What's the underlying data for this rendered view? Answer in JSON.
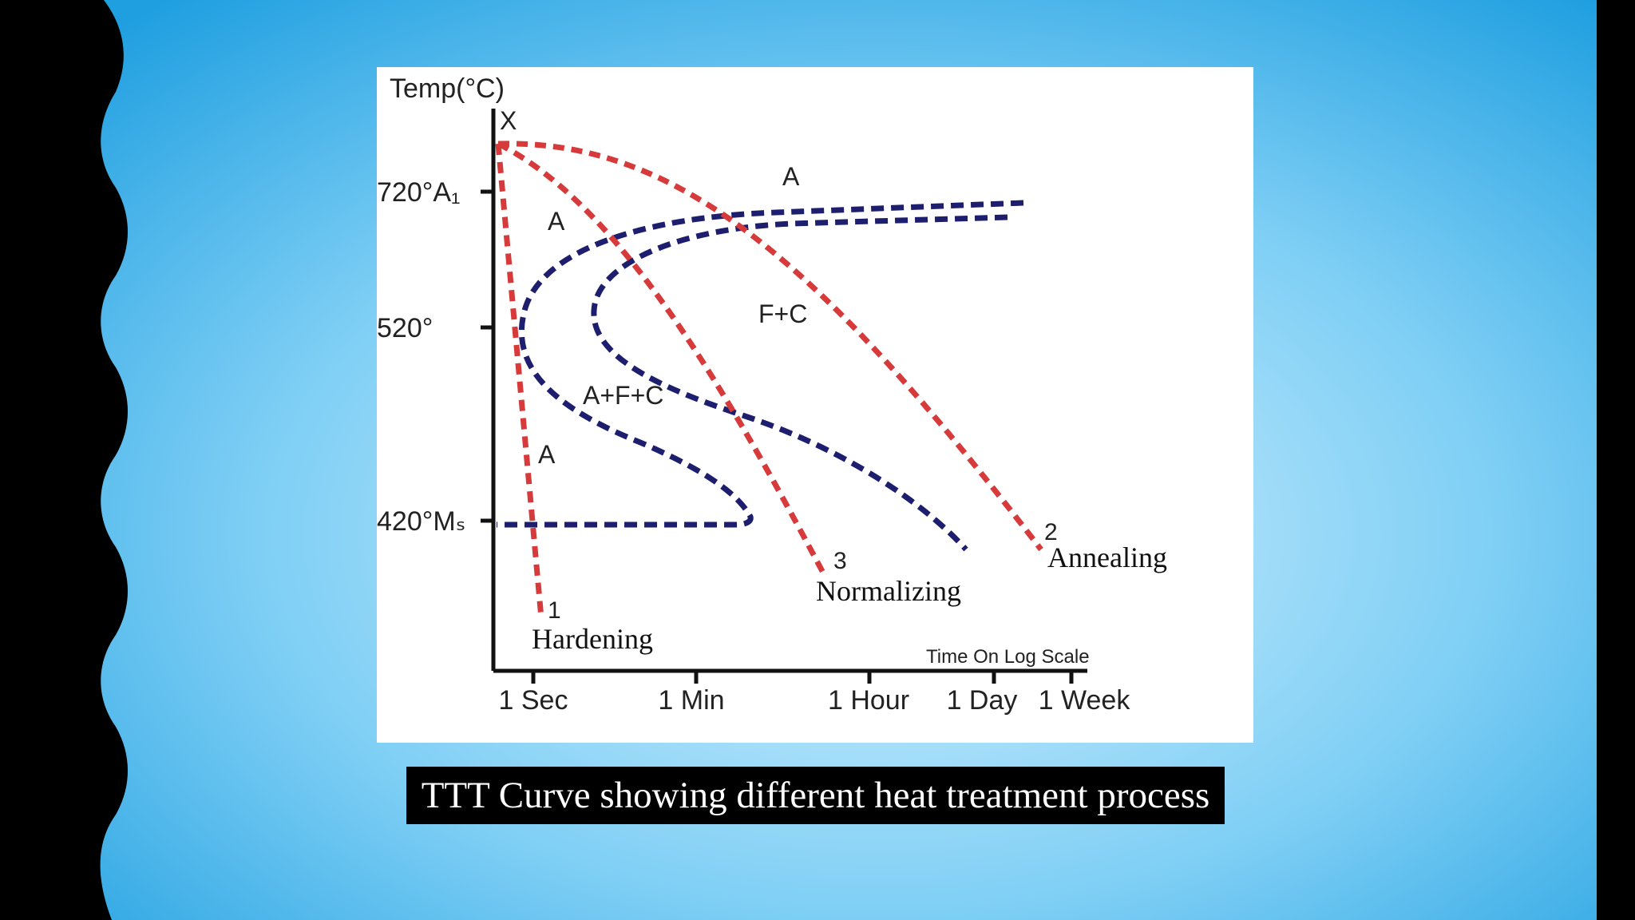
{
  "colors": {
    "cooling_curve": "#d63a3a",
    "ttt_curve": "#1e1e6e",
    "background_light": "#d6f1ff",
    "background_dark": "#1f9fe0",
    "frame": "#000000"
  },
  "diagram": {
    "y_axis_title": "Temp(°C)",
    "origin_label": "X",
    "temp_ticks": [
      {
        "label": "720°A₁"
      },
      {
        "label": "520°"
      },
      {
        "label": "420°Mₛ"
      }
    ],
    "x_axis_title": "Time On Log Scale",
    "time_ticks": [
      "1 Sec",
      "1 Min",
      "1 Hour",
      "1 Day",
      "1 Week"
    ],
    "phase_labels": {
      "austenite_top": "A",
      "austenite_left": "A",
      "ferrite_cementite": "F+C",
      "austenite_ferrite_cementite": "A+F+C",
      "austenite_low": "A"
    },
    "processes": [
      {
        "number": "1",
        "name": "Hardening"
      },
      {
        "number": "3",
        "name": "Normalizing"
      },
      {
        "number": "2",
        "name": "Annealing"
      }
    ]
  },
  "caption": "TTT Curve showing different heat treatment process"
}
